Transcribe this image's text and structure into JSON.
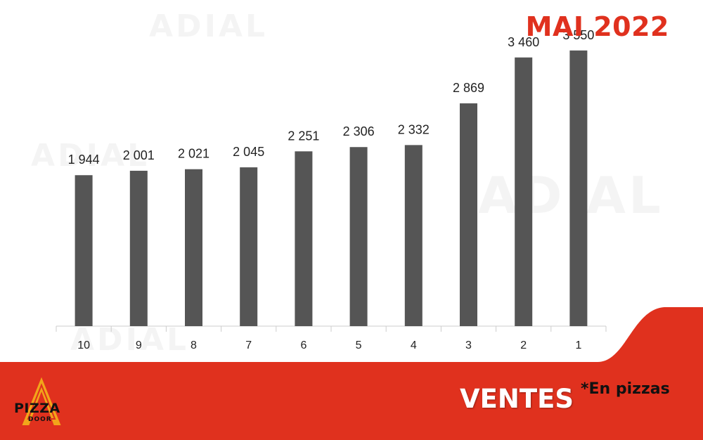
{
  "header": {
    "title": "MAI 2022"
  },
  "footer": {
    "label": "VENTES",
    "note": "*En pizzas"
  },
  "brand": {
    "logo_text": "PIZZA",
    "logo_subtext": "DOOR",
    "watermark": "ADIAL"
  },
  "colors": {
    "accent": "#e0311e",
    "bar": "#555555",
    "axis": "#cccccc",
    "text": "#222222"
  },
  "chart_data": {
    "type": "bar",
    "title": "MAI 2022",
    "categories": [
      "10",
      "9",
      "8",
      "7",
      "6",
      "5",
      "4",
      "3",
      "2",
      "1"
    ],
    "values": [
      1944,
      2001,
      2021,
      2045,
      2251,
      2306,
      2332,
      2869,
      3460,
      3550
    ],
    "value_labels": [
      "1 944",
      "2 001",
      "2 021",
      "2 045",
      "2 251",
      "2 306",
      "2 332",
      "2 869",
      "3 460",
      "3 550"
    ],
    "xlabel": "",
    "ylabel": "",
    "ylim": [
      0,
      4200
    ],
    "grid": false,
    "legend": "none"
  }
}
